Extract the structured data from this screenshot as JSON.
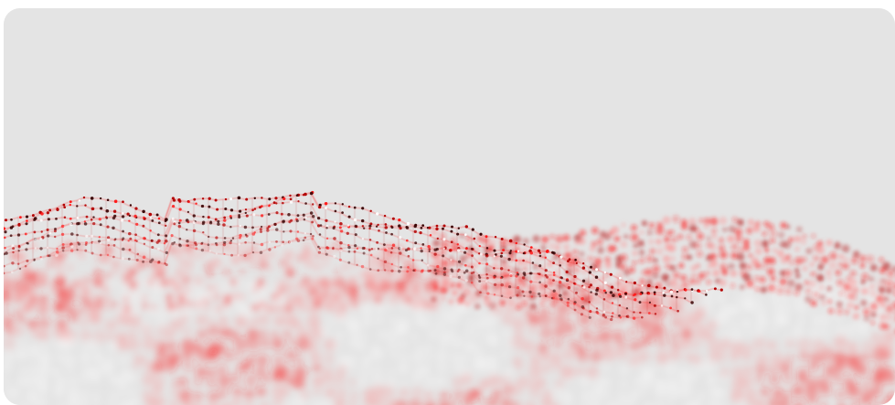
{
  "scene": {
    "subject": "particle-wave-landscape",
    "background_color": "#e4e4e4",
    "page_background": "#ffffff",
    "particle_colors": {
      "dark": "#3a0505",
      "deep_red": "#b30000",
      "red": "#ff1a1a",
      "pink": "#ff8a8a",
      "white": "#ffffff"
    }
  }
}
